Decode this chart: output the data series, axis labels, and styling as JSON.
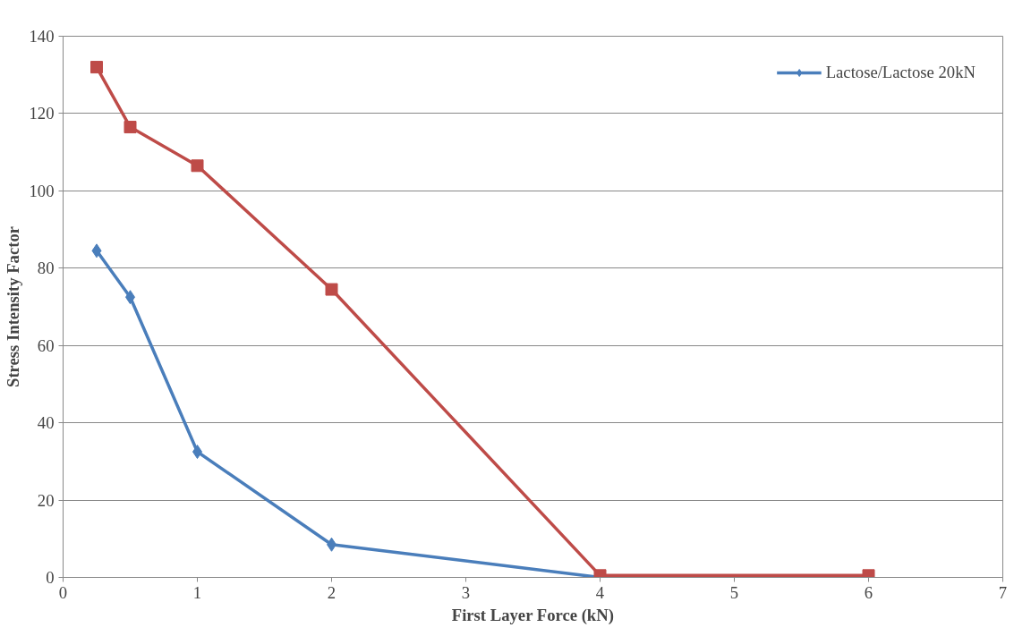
{
  "chart_data": {
    "type": "line",
    "xlabel": "First Layer Force (kN)",
    "ylabel": "Stress Intensity Factor",
    "xlim": [
      0,
      7
    ],
    "xticks": [
      0,
      1,
      2,
      3,
      4,
      5,
      6,
      7
    ],
    "ylim": [
      0,
      140
    ],
    "yticks": [
      0,
      20,
      40,
      60,
      80,
      100,
      120,
      140
    ],
    "grid": "y",
    "legend": "top right",
    "line_style": "solid",
    "series": [
      {
        "name": "Lactose/Lactose 20kN",
        "color": "#4a7ebb",
        "marker": "diamond",
        "x": [
          0.25,
          0.5,
          1,
          2,
          4,
          6
        ],
        "values": [
          84.5,
          72.5,
          32.5,
          8.5,
          0,
          0
        ]
      },
      {
        "color": "#be4b48",
        "marker": "square",
        "x": [
          0.25,
          0.5,
          1,
          2,
          4,
          6
        ],
        "values": [
          132,
          116.5,
          106.5,
          74.5,
          0.5,
          0.5
        ]
      }
    ]
  }
}
